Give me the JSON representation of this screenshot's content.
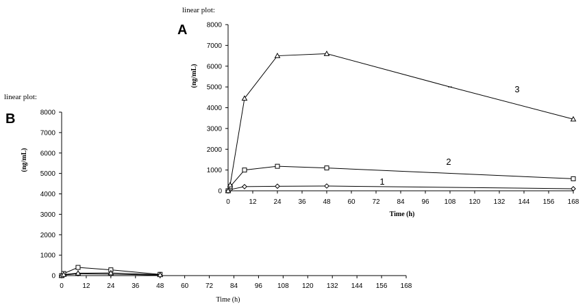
{
  "chart_data": [
    {
      "id": "A",
      "type": "line",
      "caption": "linear plot:",
      "panel_letter": "A",
      "xlabel": "Time (h)",
      "ylabel": "(ng/mL)",
      "xlim": [
        0,
        168
      ],
      "ylim": [
        0,
        8000
      ],
      "xticks": [
        0,
        12,
        24,
        36,
        48,
        60,
        72,
        84,
        96,
        108,
        120,
        132,
        144,
        156,
        168
      ],
      "yticks": [
        0,
        1000,
        2000,
        3000,
        4000,
        5000,
        6000,
        7000,
        8000
      ],
      "grid": false,
      "series": [
        {
          "name": "1",
          "marker": "diamond",
          "x": [
            0,
            1,
            8,
            24,
            48,
            168
          ],
          "y": [
            0,
            60,
            200,
            220,
            230,
            100
          ]
        },
        {
          "name": "2",
          "marker": "square",
          "x": [
            0,
            1,
            8,
            24,
            48,
            168
          ],
          "y": [
            0,
            200,
            1000,
            1180,
            1100,
            580
          ]
        },
        {
          "name": "3",
          "marker": "triangle",
          "x": [
            0,
            1,
            8,
            24,
            48,
            108,
            168
          ],
          "y": [
            0,
            280,
            4450,
            6500,
            6600,
            5000,
            3450
          ]
        }
      ]
    },
    {
      "id": "B",
      "type": "line",
      "caption": "linear plot:",
      "panel_letter": "B",
      "xlabel": "Time (h)",
      "ylabel": "(ng/mL)",
      "xlim": [
        0,
        168
      ],
      "ylim": [
        0,
        8000
      ],
      "xticks": [
        0,
        12,
        24,
        36,
        48,
        60,
        72,
        84,
        96,
        108,
        120,
        132,
        144,
        156,
        168
      ],
      "yticks": [
        0,
        1000,
        2000,
        3000,
        4000,
        5000,
        6000,
        7000,
        8000
      ],
      "grid": false,
      "series": [
        {
          "name": "",
          "marker": "diamond",
          "x": [
            0,
            1,
            8,
            24,
            48
          ],
          "y": [
            0,
            30,
            90,
            70,
            20
          ]
        },
        {
          "name": "",
          "marker": "square",
          "x": [
            0,
            1,
            8,
            24,
            48
          ],
          "y": [
            0,
            100,
            400,
            280,
            60
          ]
        },
        {
          "name": "",
          "marker": "triangle",
          "x": [
            0,
            1,
            8,
            24,
            48
          ],
          "y": [
            0,
            50,
            120,
            130,
            40
          ]
        }
      ]
    }
  ]
}
